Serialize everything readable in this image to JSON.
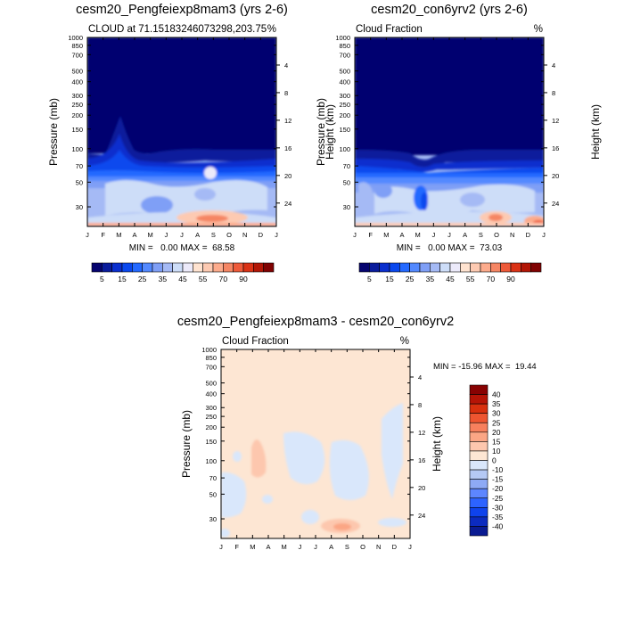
{
  "palette": {
    "abs": [
      "#06046f",
      "#0a1c9c",
      "#0a2fce",
      "#0a48ee",
      "#2469ff",
      "#5389ff",
      "#7f9ff6",
      "#a5baf5",
      "#cdddf8",
      "#eceafa",
      "#ffe3d0",
      "#fdcab2",
      "#fcab8c",
      "#f58664",
      "#ee5a3a",
      "#da3216",
      "#b21606",
      "#800202"
    ],
    "diff": [
      "#0a1b92",
      "#0c2bbf",
      "#0f43ec",
      "#2d63ff",
      "#5d86ff",
      "#8eaaf5",
      "#b5c9f5",
      "#d9e7fb",
      "#fde6d3",
      "#fdc7ae",
      "#fba685",
      "#f7805d",
      "#ee5530",
      "#d8300e",
      "#b51406",
      "#880202"
    ]
  },
  "chart_data": [
    {
      "type": "heatmap",
      "title": "cesm20_Pengfeiexp8mam3 (yrs 2-6)",
      "left_label": "CLOUD at 71.15183246073298,203.75",
      "right_label": "%",
      "ylabel": "Pressure (mb)",
      "ylabel_right": "Height (km)",
      "x_tick_labels": [
        "J",
        "F",
        "M",
        "A",
        "M",
        "J",
        "J",
        "A",
        "S",
        "O",
        "N",
        "D",
        "J"
      ],
      "pressure_ticks": [
        30,
        50,
        70,
        100,
        150,
        200,
        250,
        300,
        400,
        500,
        700,
        850,
        1000
      ],
      "height_ticks": [
        24,
        20,
        16,
        12,
        8,
        4
      ],
      "ylim": [
        1000,
        20
      ],
      "min": 0.0,
      "max": 68.58,
      "stats_label": "MIN =   0.00 MAX =  68.58",
      "colorbar_levels": [
        5,
        10,
        15,
        20,
        25,
        30,
        35,
        40,
        45,
        50,
        55,
        60,
        70,
        80,
        90
      ],
      "colorbar_tick_labels": [
        "5",
        "15",
        "25",
        "35",
        "45",
        "55",
        "70",
        "90"
      ],
      "colorbar_orientation": "horizontal"
    },
    {
      "type": "heatmap",
      "title": "cesm20_con6yrv2 (yrs 2-6)",
      "left_label": "Cloud Fraction",
      "right_label": "%",
      "ylabel": "Pressure (mb)",
      "ylabel_right": "Height (km)",
      "x_tick_labels": [
        "J",
        "F",
        "M",
        "A",
        "M",
        "J",
        "J",
        "A",
        "S",
        "O",
        "N",
        "D",
        "J"
      ],
      "pressure_ticks": [
        30,
        50,
        70,
        100,
        150,
        200,
        250,
        300,
        400,
        500,
        700,
        850,
        1000
      ],
      "height_ticks": [
        24,
        20,
        16,
        12,
        8,
        4
      ],
      "ylim": [
        1000,
        20
      ],
      "min": 0.0,
      "max": 73.03,
      "stats_label": "MIN =   0.00 MAX =  73.03",
      "colorbar_levels": [
        5,
        10,
        15,
        20,
        25,
        30,
        35,
        40,
        45,
        50,
        55,
        60,
        70,
        80,
        90
      ],
      "colorbar_tick_labels": [
        "5",
        "15",
        "25",
        "35",
        "45",
        "55",
        "70",
        "90"
      ],
      "colorbar_orientation": "horizontal"
    },
    {
      "type": "heatmap",
      "title": "cesm20_Pengfeiexp8mam3 - cesm20_con6yrv2",
      "left_label": "Cloud Fraction",
      "right_label": "%",
      "ylabel": "Pressure (mb)",
      "ylabel_right": "Height (km)",
      "x_tick_labels": [
        "J",
        "F",
        "M",
        "A",
        "M",
        "J",
        "J",
        "A",
        "S",
        "O",
        "N",
        "D",
        "J"
      ],
      "pressure_ticks": [
        30,
        50,
        70,
        100,
        150,
        200,
        250,
        300,
        400,
        500,
        700,
        850,
        1000
      ],
      "height_ticks": [
        24,
        20,
        16,
        12,
        8,
        4
      ],
      "ylim": [
        1000,
        20
      ],
      "min": -15.96,
      "max": 19.44,
      "stats_label": "MIN = -15.96 MAX =  19.44",
      "colorbar_levels": [
        -40,
        -35,
        -30,
        -25,
        -20,
        -15,
        -10,
        0,
        10,
        15,
        20,
        25,
        30,
        35,
        40
      ],
      "colorbar_tick_labels": [
        "40",
        "35",
        "30",
        "25",
        "20",
        "15",
        "10",
        "0",
        "-10",
        "-15",
        "-20",
        "-25",
        "-30",
        "-35",
        "-40"
      ],
      "colorbar_orientation": "vertical"
    }
  ]
}
